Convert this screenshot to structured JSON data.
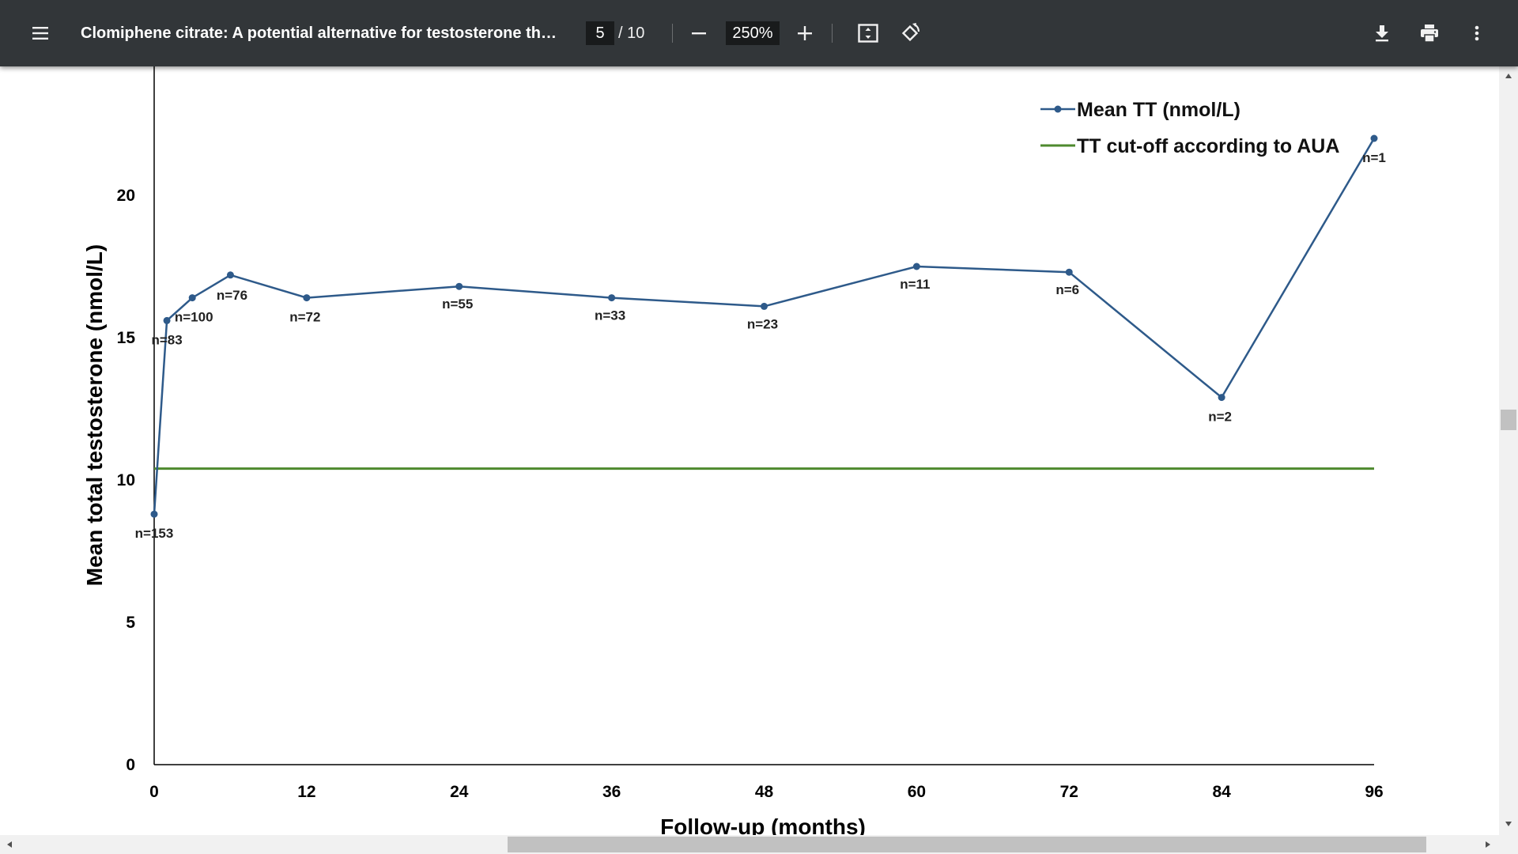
{
  "toolbar": {
    "title": "Clomiphene citrate: A potential alternative for testosterone ther...",
    "page_current": "5",
    "page_total": "/ 10",
    "zoom": "250%",
    "icons": {
      "menu": "menu-icon",
      "zoom_out": "minus-icon",
      "zoom_in": "plus-icon",
      "fit": "fit-page-icon",
      "rotate": "rotate-icon",
      "download": "download-icon",
      "print": "print-icon",
      "more": "more-vert-icon"
    }
  },
  "chart_data": {
    "type": "line",
    "xlabel": "Follow-up (months)",
    "ylabel": "Mean total testosterone (nmol/L)",
    "xlim": [
      0,
      96
    ],
    "ylim": [
      0,
      25
    ],
    "x_ticks": [
      "0",
      "12",
      "24",
      "36",
      "48",
      "60",
      "72",
      "84",
      "96"
    ],
    "y_ticks": [
      "0",
      "5",
      "10",
      "15",
      "20"
    ],
    "grid": false,
    "legend_position": "top-right",
    "series": [
      {
        "name": "Mean TT (nmol/L)",
        "color": "#2e5a8a",
        "x": [
          0,
          1,
          3,
          6,
          12,
          24,
          36,
          48,
          60,
          72,
          84,
          96
        ],
        "y": [
          8.8,
          15.6,
          16.4,
          17.2,
          16.4,
          16.8,
          16.4,
          16.1,
          17.5,
          17.3,
          12.9,
          22.0
        ],
        "labels": [
          "n=153",
          "n=83",
          "n=100",
          "n=76",
          "n=72",
          "n=55",
          "n=33",
          "n=23",
          "n=11",
          "n=6",
          "n=2",
          "n=1"
        ]
      },
      {
        "name": "TT cut-off according to AUA",
        "color": "#4e8a2e",
        "x": [
          0,
          96
        ],
        "y": [
          10.4,
          10.4
        ]
      }
    ]
  }
}
